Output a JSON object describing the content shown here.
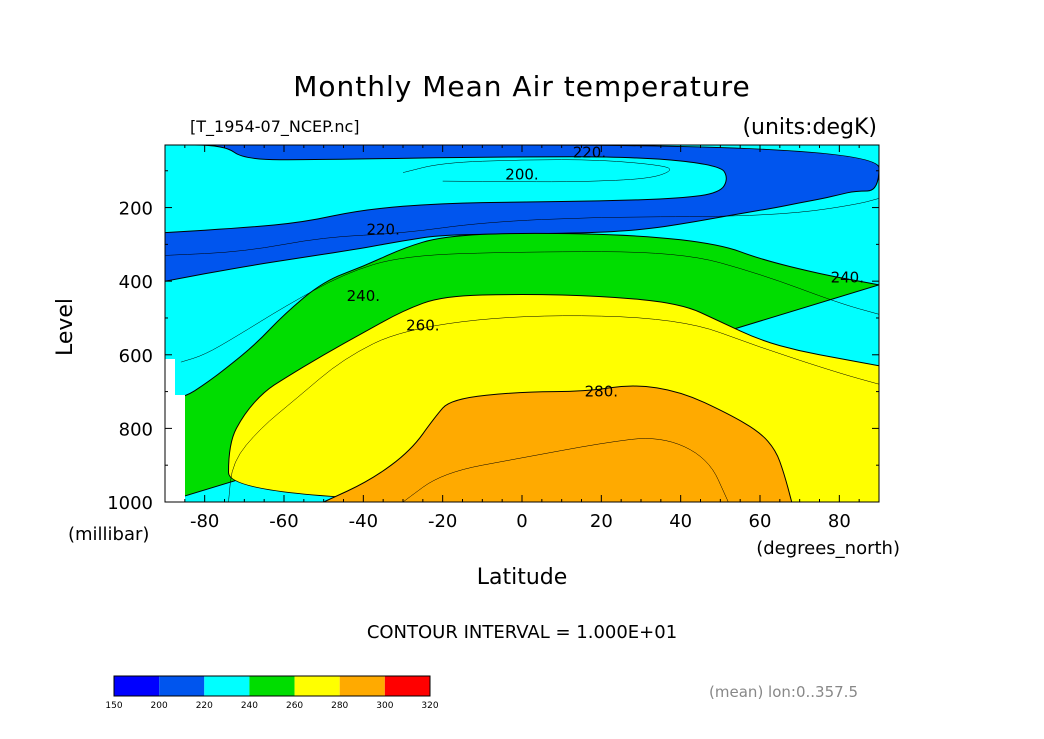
{
  "chart_data": {
    "type": "heatmap",
    "title": "Monthly Mean Air temperature",
    "file_label": "[T_1954-07_NCEP.nc]",
    "units_label": "(units:degK)",
    "xlabel": "Latitude",
    "xunits": "(degrees_north)",
    "ylabel": "Level",
    "yunits": "(millibar)",
    "xlim": [
      -90,
      90
    ],
    "ylim": [
      1000,
      30
    ],
    "x_ticks": [
      -80,
      -60,
      -40,
      -20,
      0,
      20,
      40,
      60,
      80
    ],
    "x_tick_labels": [
      "-80",
      "-60",
      "-40",
      "-20",
      "0",
      "20",
      "40",
      "60",
      "80"
    ],
    "y_ticks": [
      200,
      400,
      600,
      800,
      1000
    ],
    "y_tick_labels": [
      "200",
      "400",
      "600",
      "800",
      "1000"
    ],
    "contour_interval_text": "CONTOUR INTERVAL = 1.000E+01",
    "contour_labels": [
      {
        "text": "220.",
        "lat": 17,
        "level": 50
      },
      {
        "text": "200.",
        "lat": 0,
        "level": 110
      },
      {
        "text": "220.",
        "lat": -35,
        "level": 260
      },
      {
        "text": "240.",
        "lat": -40,
        "level": 440
      },
      {
        "text": "240.",
        "lat": 82,
        "level": 390
      },
      {
        "text": "260.",
        "lat": -25,
        "level": 520
      },
      {
        "text": "280.",
        "lat": 20,
        "level": 700
      }
    ],
    "colorbar": {
      "levels": [
        150,
        200,
        220,
        240,
        260,
        280,
        300,
        320
      ],
      "labels": [
        "150",
        "200",
        "220",
        "240",
        "260",
        "280",
        "300",
        "320"
      ],
      "colors": [
        "#0000ff",
        "#0055ee",
        "#00ffff",
        "#00dd00",
        "#ffff00",
        "#ffaa00",
        "#ff0000"
      ]
    },
    "mean_note": "(mean) lon:0..357.5",
    "bands": [
      {
        "range": [
          200,
          220
        ],
        "color": "#0055ee",
        "boundary": [
          [
            -90,
            30
          ],
          [
            90,
            30
          ],
          [
            90,
            155
          ],
          [
            84,
            155
          ],
          [
            80,
            165
          ],
          [
            76,
            175
          ],
          [
            70,
            187
          ],
          [
            64,
            200
          ],
          [
            56,
            215
          ],
          [
            48,
            230
          ],
          [
            40,
            245
          ],
          [
            32,
            258
          ],
          [
            20,
            268
          ],
          [
            0,
            272
          ],
          [
            -20,
            274
          ],
          [
            -30,
            290
          ],
          [
            -40,
            310
          ],
          [
            -55,
            335
          ],
          [
            -70,
            360
          ],
          [
            -90,
            400
          ]
        ]
      },
      {
        "range": [
          150,
          200
        ],
        "color": "#0000ff",
        "boundary": [
          [
            -90,
            30
          ],
          [
            -75,
            30
          ],
          [
            -77,
            60
          ],
          [
            -80,
            100
          ],
          [
            -84,
            140
          ],
          [
            -90,
            180
          ]
        ]
      },
      {
        "range": [
          150,
          200
        ],
        "color": "#0000ff",
        "boundary": [
          [
            -20,
            85
          ],
          [
            0,
            80
          ],
          [
            20,
            82
          ],
          [
            24,
            88
          ],
          [
            20,
            100
          ],
          [
            0,
            103
          ],
          [
            -20,
            100
          ],
          [
            -24,
            92
          ]
        ]
      },
      {
        "range": [
          220,
          240
        ],
        "color": "#00ffff",
        "boundary": [
          [
            -90,
            30
          ],
          [
            -75,
            30
          ],
          [
            -70,
            70
          ],
          [
            -52,
            70
          ],
          [
            -5,
            62
          ],
          [
            30,
            62
          ],
          [
            50,
            85
          ],
          [
            52,
            120
          ],
          [
            50,
            160
          ],
          [
            40,
            175
          ],
          [
            20,
            182
          ],
          [
            0,
            185
          ],
          [
            -20,
            188
          ],
          [
            -40,
            205
          ],
          [
            -55,
            240
          ],
          [
            -70,
            255
          ],
          [
            -90,
            268
          ]
        ]
      },
      {
        "range": [
          240,
          260
        ],
        "color": "#00dd00",
        "boundary": [
          [
            90,
            410
          ],
          [
            85,
            400
          ],
          [
            75,
            380
          ],
          [
            60,
            340
          ],
          [
            50,
            300
          ],
          [
            30,
            275
          ],
          [
            0,
            268
          ],
          [
            -20,
            278
          ],
          [
            -30,
            310
          ],
          [
            -40,
            360
          ],
          [
            -50,
            400
          ],
          [
            -60,
            490
          ],
          [
            -67,
            570
          ],
          [
            -75,
            640
          ],
          [
            -80,
            680
          ],
          [
            -85,
            715
          ],
          [
            -90,
            720
          ],
          [
            -90,
            1000
          ]
        ]
      },
      {
        "range": [
          260,
          280
        ],
        "color": "#ffff00",
        "boundary": [
          [
            90,
            630
          ],
          [
            80,
            610
          ],
          [
            70,
            590
          ],
          [
            60,
            560
          ],
          [
            50,
            510
          ],
          [
            40,
            460
          ],
          [
            20,
            440
          ],
          [
            0,
            435
          ],
          [
            -20,
            440
          ],
          [
            -30,
            480
          ],
          [
            -40,
            540
          ],
          [
            -50,
            600
          ],
          [
            -60,
            665
          ],
          [
            -65,
            700
          ],
          [
            -70,
            760
          ],
          [
            -74,
            840
          ],
          [
            -74,
            1000
          ],
          [
            90,
            1000
          ]
        ]
      },
      {
        "range": [
          280,
          300
        ],
        "color": "#ffaa00",
        "boundary": [
          [
            -50,
            1000
          ],
          [
            -38,
            940
          ],
          [
            -28,
            860
          ],
          [
            -22,
            770
          ],
          [
            -18,
            720
          ],
          [
            0,
            700
          ],
          [
            16,
            700
          ],
          [
            28,
            680
          ],
          [
            40,
            700
          ],
          [
            52,
            760
          ],
          [
            60,
            810
          ],
          [
            64,
            860
          ],
          [
            66,
            920
          ],
          [
            68,
            1000
          ]
        ]
      }
    ],
    "contours": [
      {
        "level": 210,
        "points": [
          [
            -30,
            105
          ],
          [
            -20,
            78
          ],
          [
            0,
            70
          ],
          [
            20,
            70
          ],
          [
            36,
            86
          ],
          [
            38,
            100
          ],
          [
            32,
            122
          ],
          [
            15,
            130
          ],
          [
            0,
            130
          ],
          [
            -20,
            128
          ]
        ]
      },
      {
        "level": 230,
        "points": [
          [
            -90,
            330
          ],
          [
            -70,
            320
          ],
          [
            -50,
            280
          ],
          [
            -30,
            270
          ],
          [
            -10,
            240
          ],
          [
            20,
            225
          ],
          [
            50,
            225
          ],
          [
            70,
            215
          ],
          [
            85,
            190
          ],
          [
            90,
            175
          ]
        ]
      },
      {
        "level": 250,
        "points": [
          [
            -86,
            620
          ],
          [
            -80,
            600
          ],
          [
            -72,
            550
          ],
          [
            -60,
            470
          ],
          [
            -45,
            380
          ],
          [
            -30,
            330
          ],
          [
            0,
            320
          ],
          [
            40,
            320
          ],
          [
            60,
            380
          ],
          [
            80,
            460
          ],
          [
            90,
            490
          ]
        ]
      },
      {
        "level": 270,
        "points": [
          [
            -74,
            1000
          ],
          [
            -73,
            890
          ],
          [
            -66,
            800
          ],
          [
            -57,
            720
          ],
          [
            -45,
            610
          ],
          [
            -30,
            530
          ],
          [
            0,
            490
          ],
          [
            40,
            500
          ],
          [
            60,
            580
          ],
          [
            80,
            650
          ],
          [
            90,
            680
          ]
        ]
      },
      {
        "level": 290,
        "points": [
          [
            -30,
            1000
          ],
          [
            -20,
            920
          ],
          [
            0,
            880
          ],
          [
            20,
            840
          ],
          [
            35,
            820
          ],
          [
            47,
            880
          ],
          [
            52,
            1000
          ]
        ]
      }
    ]
  }
}
